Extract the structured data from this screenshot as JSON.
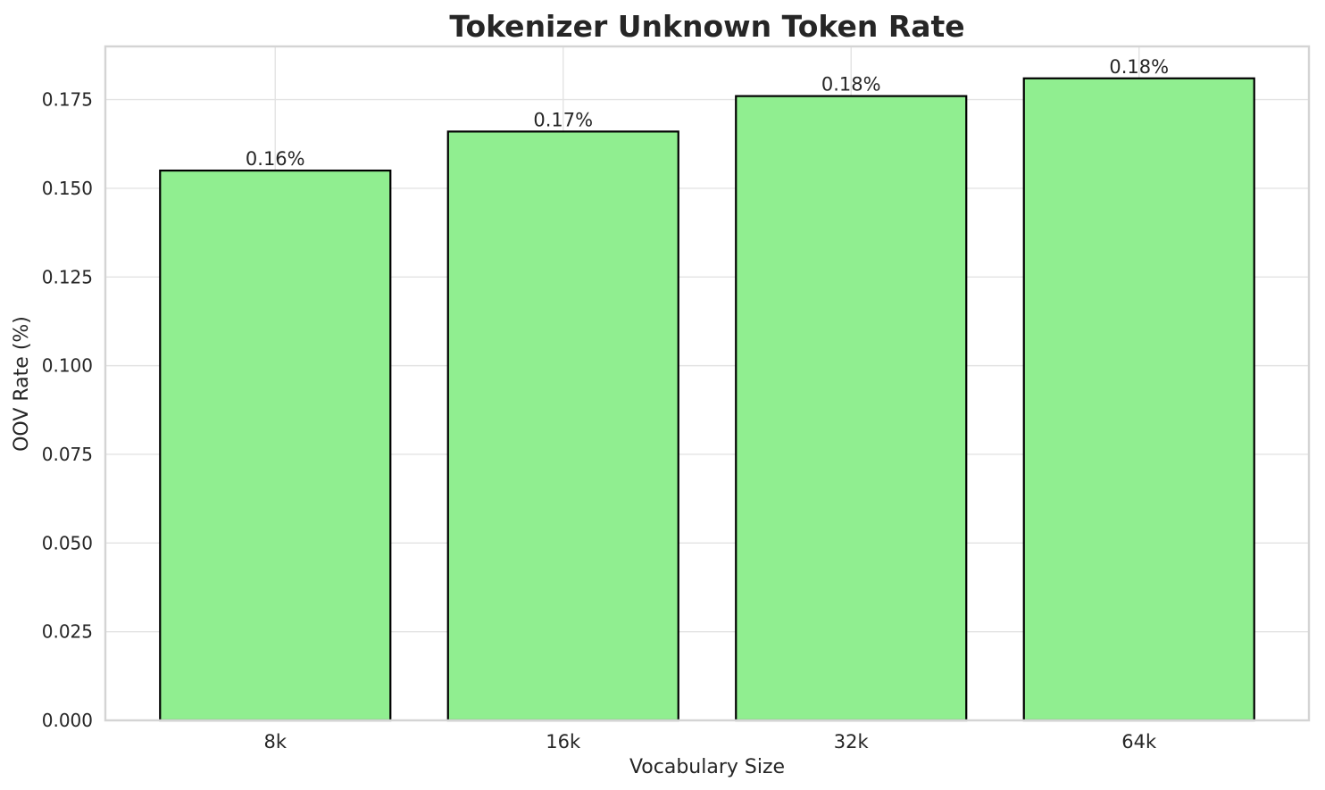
{
  "chart_data": {
    "type": "bar",
    "title": "Tokenizer Unknown Token Rate",
    "xlabel": "Vocabulary Size",
    "ylabel": "OOV Rate (%)",
    "categories": [
      "8k",
      "16k",
      "32k",
      "64k"
    ],
    "values": [
      0.155,
      0.166,
      0.176,
      0.181
    ],
    "bar_labels": [
      "0.16%",
      "0.17%",
      "0.18%",
      "0.18%"
    ],
    "ylim": [
      0,
      0.19
    ],
    "yticks": [
      0.0,
      0.025,
      0.05,
      0.075,
      0.1,
      0.125,
      0.15,
      0.175
    ],
    "ytick_labels": [
      "0.000",
      "0.025",
      "0.050",
      "0.075",
      "0.100",
      "0.125",
      "0.150",
      "0.175"
    ],
    "grid": true,
    "legend": false,
    "colors": {
      "bar_fill": "#90EE90",
      "bar_edge": "#000000",
      "grid": "#e3e3e3",
      "spine": "#d4d4d4",
      "text": "#262626",
      "background": "#ffffff"
    }
  }
}
